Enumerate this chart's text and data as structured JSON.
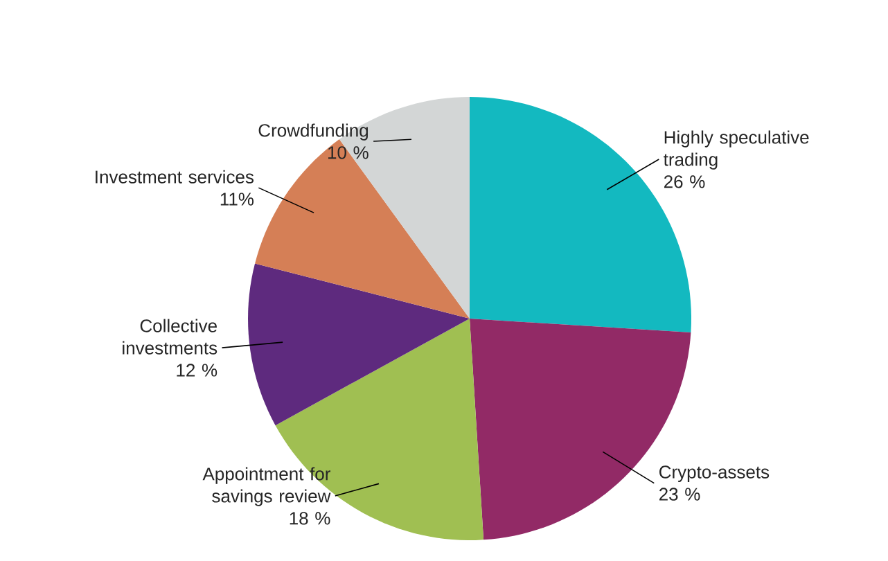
{
  "chart_data": {
    "type": "pie",
    "categories": [
      "Highly speculative trading",
      "Crypto-assets",
      "Appointment for savings review",
      "Collective investments",
      "Investment services",
      "Crowdfunding"
    ],
    "values": [
      26,
      23,
      18,
      12,
      11,
      10
    ],
    "colors": [
      "#13b9c0",
      "#922a66",
      "#a0bf52",
      "#5e2a7e",
      "#d57f56",
      "#d3d6d6"
    ],
    "value_labels": [
      "26 %",
      "23 %",
      "18 %",
      "12 %",
      "11%",
      "10 %"
    ]
  }
}
